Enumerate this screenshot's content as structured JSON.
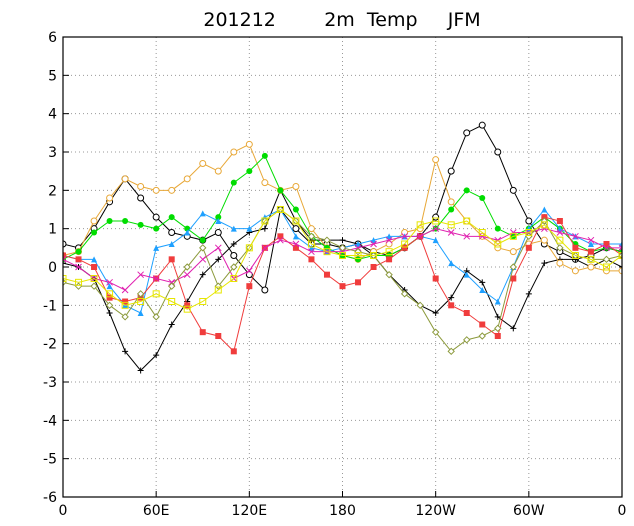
{
  "chart_data": {
    "type": "line",
    "title": "201212        2m  Temp     JFM",
    "x": [
      0,
      10,
      20,
      30,
      40,
      50,
      60,
      70,
      80,
      90,
      100,
      110,
      120,
      130,
      140,
      150,
      160,
      170,
      180,
      190,
      200,
      210,
      220,
      230,
      240,
      250,
      260,
      270,
      280,
      290,
      300,
      310,
      320,
      330,
      340,
      350,
      360
    ],
    "xlim": [
      0,
      360
    ],
    "xticks": [
      0,
      {
        "value": 60,
        "label": "60E"
      },
      {
        "value": 120,
        "label": "120E"
      },
      180,
      {
        "value": 240,
        "label": "120W"
      },
      {
        "value": 300,
        "label": "60W"
      },
      {
        "value": 360,
        "label": "0"
      }
    ],
    "ylim": [
      -6,
      6
    ],
    "yticks": [
      -6,
      -5,
      -4,
      -3,
      -2,
      -1,
      0,
      1,
      2,
      3,
      4,
      5,
      6
    ],
    "grid": true,
    "series": [
      {
        "color": "#000000",
        "marker": "circle-open",
        "values": [
          0.6,
          0.5,
          1.0,
          1.7,
          2.3,
          1.8,
          1.3,
          0.9,
          0.8,
          0.7,
          0.9,
          0.3,
          -0.2,
          -0.6,
          1.5,
          1.0,
          0.6,
          0.6,
          0.5,
          0.6,
          0.4,
          0.3,
          0.5,
          0.8,
          1.3,
          2.5,
          3.5,
          3.7,
          3.0,
          2.0,
          1.2,
          0.6,
          0.4,
          0.2,
          0.3,
          0.5,
          0.4
        ]
      },
      {
        "color": "#000000",
        "marker": "plus",
        "values": [
          0.1,
          0.0,
          -0.3,
          -1.2,
          -2.2,
          -2.7,
          -2.3,
          -1.5,
          -0.9,
          -0.2,
          0.2,
          0.6,
          0.9,
          1.0,
          2.0,
          1.2,
          0.7,
          0.7,
          0.7,
          0.6,
          0.3,
          -0.2,
          -0.6,
          -1.0,
          -1.2,
          -0.8,
          -0.1,
          -0.4,
          -1.3,
          -1.6,
          -0.7,
          0.1,
          0.2,
          0.2,
          0.0,
          0.2,
          0.0
        ]
      },
      {
        "color": "#e8a838",
        "marker": "circle-open",
        "values": [
          0.3,
          0.4,
          1.2,
          1.8,
          2.3,
          2.1,
          2.0,
          2.0,
          2.3,
          2.7,
          2.5,
          3.0,
          3.2,
          2.2,
          2.0,
          2.1,
          1.0,
          0.5,
          0.3,
          0.2,
          0.4,
          0.6,
          0.9,
          1.0,
          2.8,
          1.7,
          1.2,
          0.8,
          0.5,
          0.4,
          0.6,
          0.7,
          0.1,
          -0.1,
          0.0,
          -0.1,
          -0.1
        ]
      },
      {
        "color": "#00dd00",
        "marker": "circle-filled",
        "values": [
          0.2,
          0.4,
          0.9,
          1.2,
          1.2,
          1.1,
          1.0,
          1.3,
          1.0,
          0.7,
          1.3,
          2.2,
          2.5,
          2.9,
          2.0,
          1.5,
          0.8,
          0.5,
          0.3,
          0.2,
          0.3,
          0.3,
          0.5,
          0.8,
          1.0,
          1.5,
          2.0,
          1.8,
          1.0,
          0.8,
          1.0,
          1.3,
          1.0,
          0.6,
          0.4,
          0.5,
          0.4
        ]
      },
      {
        "color": "#1ea0ff",
        "marker": "triangle",
        "values": [
          0.3,
          0.2,
          0.2,
          -0.5,
          -1.0,
          -1.2,
          0.5,
          0.6,
          0.9,
          1.4,
          1.2,
          1.0,
          1.0,
          1.3,
          1.5,
          0.8,
          0.5,
          0.4,
          0.5,
          0.6,
          0.7,
          0.8,
          0.8,
          0.8,
          0.7,
          0.1,
          -0.2,
          -0.6,
          -0.9,
          0.0,
          1.0,
          1.5,
          1.0,
          0.8,
          0.6,
          0.6,
          0.6
        ]
      },
      {
        "color": "#f03c3c",
        "marker": "square",
        "values": [
          0.3,
          0.2,
          0.0,
          -0.8,
          -0.9,
          -0.8,
          -0.3,
          0.2,
          -1.0,
          -1.7,
          -1.8,
          -2.2,
          -0.5,
          0.5,
          0.8,
          0.5,
          0.2,
          -0.2,
          -0.5,
          -0.4,
          0.0,
          0.2,
          0.5,
          0.8,
          -0.3,
          -1.0,
          -1.2,
          -1.5,
          -1.8,
          -0.3,
          0.5,
          1.3,
          1.2,
          0.5,
          0.4,
          0.6,
          0.3
        ]
      },
      {
        "color": "#e020b0",
        "marker": "x",
        "values": [
          0.2,
          0.0,
          -0.3,
          -0.4,
          -0.6,
          -0.2,
          -0.3,
          -0.4,
          -0.2,
          0.2,
          0.5,
          -0.3,
          -0.1,
          0.5,
          0.7,
          0.6,
          0.4,
          0.4,
          0.4,
          0.5,
          0.6,
          0.7,
          0.8,
          0.8,
          1.0,
          0.9,
          0.8,
          0.8,
          0.7,
          0.9,
          0.9,
          1.0,
          0.9,
          0.8,
          0.7,
          0.5,
          0.5
        ]
      },
      {
        "color": "#8c9a3c",
        "marker": "diamond-open",
        "values": [
          -0.4,
          -0.5,
          -0.5,
          -1.0,
          -1.3,
          -0.7,
          -1.3,
          -0.5,
          0.0,
          0.5,
          -0.5,
          0.0,
          0.5,
          1.2,
          1.5,
          1.2,
          0.8,
          0.7,
          0.5,
          0.4,
          0.3,
          -0.2,
          -0.7,
          -1.0,
          -1.7,
          -2.2,
          -1.9,
          -1.8,
          -1.6,
          0.0,
          0.8,
          1.2,
          0.5,
          0.3,
          0.2,
          0.2,
          0.3
        ]
      },
      {
        "color": "#e6e600",
        "marker": "square-open",
        "values": [
          -0.3,
          -0.4,
          -0.3,
          -0.7,
          -1.0,
          -0.9,
          -0.7,
          -0.9,
          -1.1,
          -0.9,
          -0.6,
          -0.3,
          0.5,
          1.2,
          1.5,
          1.2,
          0.6,
          0.4,
          0.3,
          0.3,
          0.3,
          0.4,
          0.6,
          1.1,
          1.2,
          1.1,
          1.2,
          0.9,
          0.6,
          0.8,
          0.9,
          1.1,
          0.7,
          0.3,
          0.2,
          0.0,
          0.3
        ]
      }
    ]
  }
}
